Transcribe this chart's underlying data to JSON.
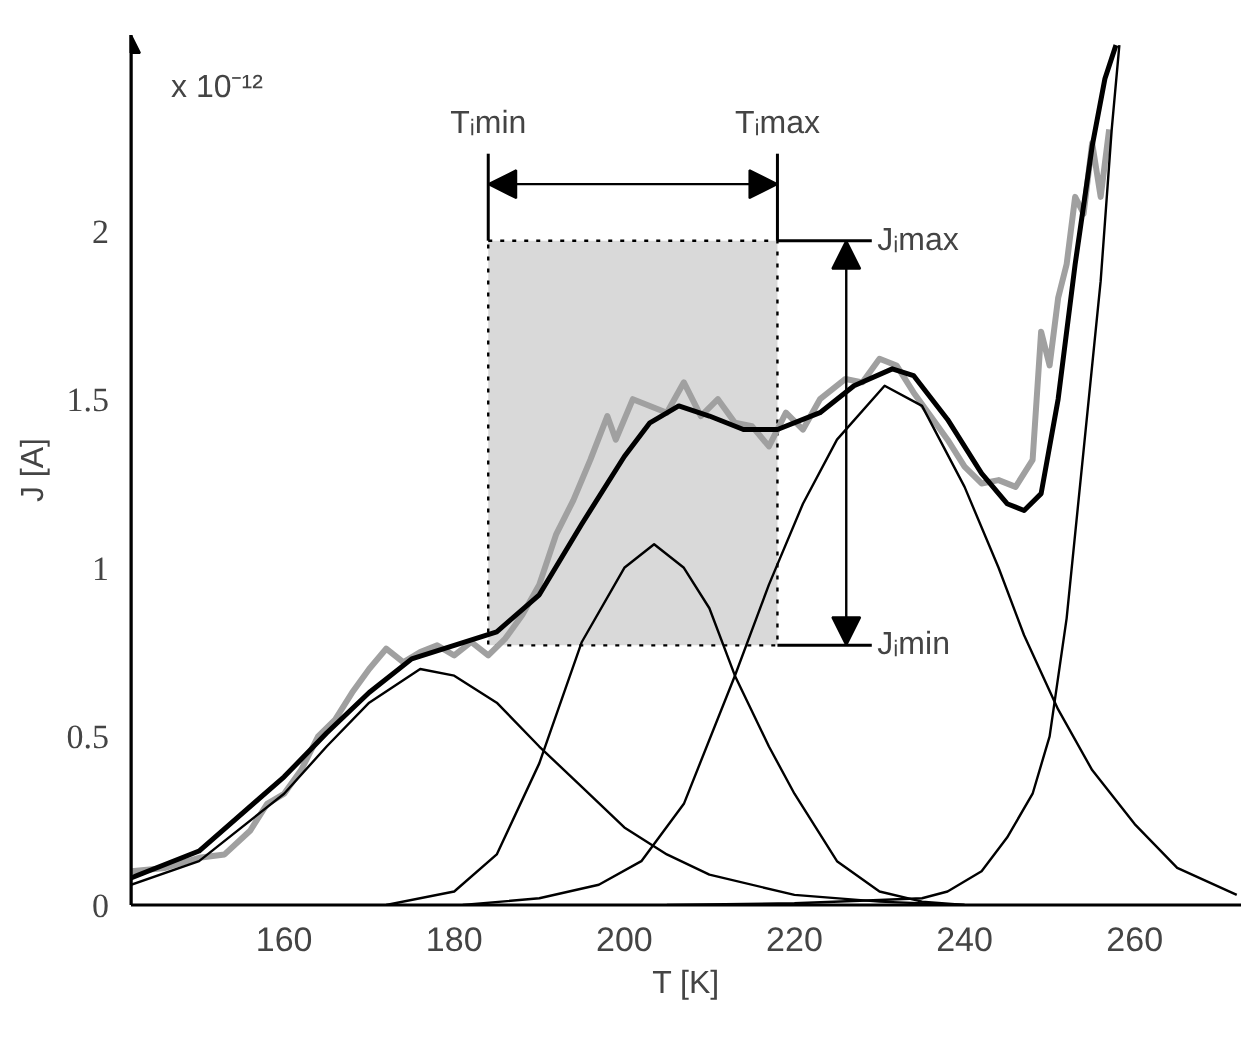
{
  "chart_data": {
    "type": "line",
    "xlabel": "T [K]",
    "ylabel": "J [A]",
    "annotations": [
      "x 10⁻¹²"
    ],
    "xlim": [
      142,
      272.5
    ],
    "xticks": [
      160,
      180,
      200,
      220,
      240,
      260
    ],
    "ylim": [
      0,
      2.58
    ],
    "yticks": [
      0,
      0.5,
      1,
      1.5,
      2
    ],
    "grid": false,
    "marker": "none",
    "line_style": "solid",
    "bands": [
      {
        "axis": "x",
        "from": 184,
        "to": 218,
        "color": "#d9d9d9"
      }
    ],
    "ref_lines": [
      {
        "axis": "x",
        "value": 184,
        "label": "Tᵢmin"
      },
      {
        "axis": "x",
        "value": 218,
        "label": "Tᵢmax"
      },
      {
        "axis": "y",
        "value": 1.97,
        "label": "Jᵢmax"
      },
      {
        "axis": "y",
        "value": 0.77,
        "label": "Jᵢmin"
      }
    ],
    "series": [
      {
        "color": "#a0a0a0",
        "x": [
          142,
          146,
          150,
          153,
          156,
          158,
          160,
          162,
          164,
          166,
          168,
          170,
          172,
          174,
          176,
          178,
          180,
          182,
          184,
          186,
          188,
          190,
          192,
          194,
          196,
          198,
          199,
          201,
          203,
          205,
          207,
          209,
          211,
          213,
          215,
          217,
          219,
          221,
          223,
          226,
          228,
          230,
          232,
          234,
          236,
          238,
          240,
          242,
          244,
          246,
          248,
          249,
          250,
          251,
          252,
          253,
          254,
          255,
          256,
          257
        ],
        "values": [
          0.1,
          0.11,
          0.14,
          0.15,
          0.22,
          0.3,
          0.33,
          0.4,
          0.5,
          0.55,
          0.63,
          0.7,
          0.76,
          0.72,
          0.75,
          0.77,
          0.74,
          0.78,
          0.74,
          0.79,
          0.86,
          0.95,
          1.1,
          1.2,
          1.32,
          1.45,
          1.38,
          1.5,
          1.48,
          1.46,
          1.55,
          1.45,
          1.5,
          1.43,
          1.42,
          1.36,
          1.46,
          1.41,
          1.5,
          1.56,
          1.55,
          1.62,
          1.6,
          1.52,
          1.45,
          1.38,
          1.3,
          1.25,
          1.26,
          1.24,
          1.32,
          1.7,
          1.6,
          1.8,
          1.9,
          2.1,
          2.05,
          2.26,
          2.1,
          2.3
        ]
      },
      {
        "color": "#000000",
        "x": [
          142,
          150,
          160,
          165,
          170,
          176,
          180,
          185,
          190,
          195,
          200,
          205,
          210,
          220,
          230,
          240
        ],
        "values": [
          0.06,
          0.13,
          0.33,
          0.47,
          0.6,
          0.7,
          0.68,
          0.6,
          0.47,
          0.35,
          0.23,
          0.15,
          0.09,
          0.03,
          0.01,
          0.0
        ]
      },
      {
        "color": "#000000",
        "x": [
          172,
          180,
          185,
          190,
          195,
          200,
          203.5,
          207,
          210,
          213,
          217,
          220,
          225,
          230,
          235,
          240
        ],
        "values": [
          0,
          0.04,
          0.15,
          0.42,
          0.78,
          1.0,
          1.07,
          1.0,
          0.88,
          0.68,
          0.47,
          0.33,
          0.13,
          0.04,
          0.01,
          0
        ]
      },
      {
        "color": "#000000",
        "x": [
          181,
          190,
          197,
          202,
          207,
          213,
          217,
          221,
          225,
          230.6,
          235,
          240,
          244,
          247,
          251,
          255,
          260,
          265,
          272
        ],
        "values": [
          0,
          0.02,
          0.06,
          0.13,
          0.3,
          0.68,
          0.95,
          1.19,
          1.38,
          1.54,
          1.48,
          1.24,
          1.0,
          0.8,
          0.58,
          0.4,
          0.24,
          0.11,
          0.03
        ]
      },
      {
        "color": "#000000",
        "x": [
          205,
          220,
          230,
          235,
          238,
          242,
          245,
          248,
          250,
          252,
          254,
          256,
          257.3,
          258.2
        ],
        "values": [
          0,
          0.005,
          0.015,
          0.02,
          0.04,
          0.1,
          0.2,
          0.33,
          0.5,
          0.85,
          1.35,
          1.85,
          2.3,
          2.55
        ]
      },
      {
        "color": "#000000",
        "x": [
          142,
          150,
          160,
          165,
          170,
          175,
          180,
          185,
          190,
          195,
          200,
          203,
          206.4,
          210,
          214,
          218,
          223,
          227,
          231.5,
          234,
          238,
          242,
          245,
          247,
          249,
          251,
          253,
          255,
          256.5,
          257.8
        ],
        "values": [
          0.08,
          0.16,
          0.38,
          0.51,
          0.63,
          0.73,
          0.77,
          0.81,
          0.92,
          1.13,
          1.33,
          1.43,
          1.48,
          1.45,
          1.41,
          1.41,
          1.46,
          1.54,
          1.59,
          1.57,
          1.44,
          1.28,
          1.19,
          1.17,
          1.22,
          1.5,
          1.9,
          2.25,
          2.45,
          2.55
        ]
      }
    ]
  }
}
